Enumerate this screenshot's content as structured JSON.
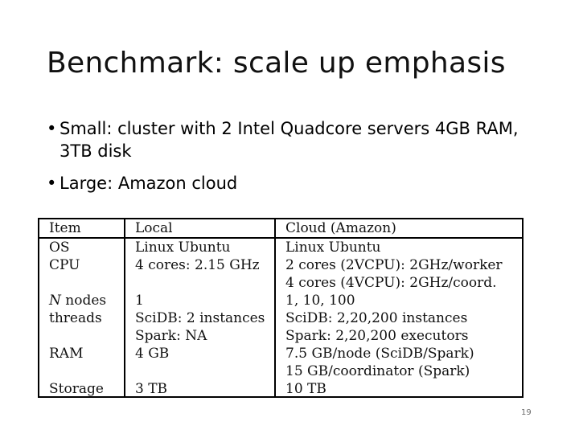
{
  "slide": {
    "title": "Benchmark: scale up emphasis",
    "bullets": [
      "Small: cluster with 2 Intel Quadcore servers 4GB RAM, 3TB disk",
      "Large: Amazon cloud"
    ],
    "page_number": "19"
  },
  "table": {
    "headers": [
      "Item",
      "Local",
      "Cloud (Amazon)"
    ],
    "rows": [
      {
        "item": "OS",
        "local": [
          "Linux Ubuntu"
        ],
        "cloud": [
          "Linux Ubuntu"
        ]
      },
      {
        "item": "CPU",
        "local": [
          "4 cores: 2.15 GHz"
        ],
        "cloud": [
          "2 cores (2VCPU): 2GHz/worker",
          "4 cores (4VCPU): 2GHz/coord."
        ]
      },
      {
        "item_italic": "N",
        "item": " nodes",
        "local": [
          "1"
        ],
        "cloud": [
          "1, 10, 100"
        ]
      },
      {
        "item": "threads",
        "local": [
          "SciDB: 2 instances",
          "Spark: NA"
        ],
        "cloud": [
          "SciDB: 2,20,200 instances",
          "Spark: 2,20,200 executors"
        ]
      },
      {
        "item": "RAM",
        "local": [
          "4 GB"
        ],
        "cloud": [
          "7.5 GB/node (SciDB/Spark)",
          "15 GB/coordinator (Spark)"
        ]
      },
      {
        "item": "Storage",
        "local": [
          "3 TB"
        ],
        "cloud": [
          "10 TB"
        ]
      }
    ]
  }
}
